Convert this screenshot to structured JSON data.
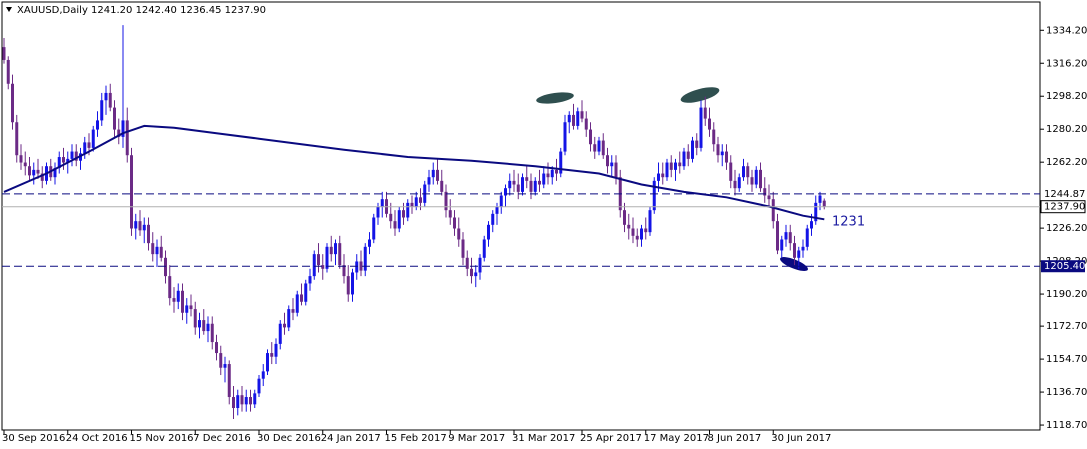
{
  "chart_data": {
    "type": "candlestick",
    "title": "XAUUSD,Daily  1241.20 1242.40 1236.45 1237.90",
    "ylim": [
      1116,
      1348
    ],
    "yticks": [
      {
        "value": 1334.2,
        "label": "1334.20"
      },
      {
        "value": 1316.2,
        "label": "1316.20"
      },
      {
        "value": 1298.2,
        "label": "1298.20"
      },
      {
        "value": 1280.2,
        "label": "1280.20"
      },
      {
        "value": 1262.2,
        "label": "1262.20"
      },
      {
        "value": 1226.2,
        "label": "1226.20"
      },
      {
        "value": 1208.2,
        "label": "1208.20"
      },
      {
        "value": 1190.2,
        "label": "1190.20"
      },
      {
        "value": 1172.7,
        "label": "1172.70"
      },
      {
        "value": 1154.7,
        "label": "1154.70"
      },
      {
        "value": 1136.7,
        "label": "1136.70"
      },
      {
        "value": 1118.7,
        "label": "1118.70"
      }
    ],
    "up_color": "#1414e6",
    "down_color": "#6b2a86",
    "categories": [
      "30 Sep 2016",
      null,
      null,
      null,
      null,
      null,
      null,
      null,
      null,
      null,
      null,
      null,
      null,
      null,
      null,
      "24 Oct 2016",
      null,
      null,
      null,
      null,
      null,
      null,
      null,
      null,
      null,
      null,
      null,
      null,
      null,
      null,
      "15 Nov 2016",
      null,
      null,
      null,
      null,
      null,
      null,
      null,
      null,
      null,
      null,
      null,
      null,
      null,
      null,
      "7 Dec 2016",
      null,
      null,
      null,
      null,
      null,
      null,
      null,
      null,
      null,
      null,
      null,
      null,
      null,
      null,
      "30 Dec 2016",
      null,
      null,
      null,
      null,
      null,
      null,
      null,
      null,
      null,
      null,
      null,
      null,
      null,
      null,
      "24 Jan 2017",
      null,
      null,
      null,
      null,
      null,
      null,
      null,
      null,
      null,
      null,
      null,
      null,
      null,
      null,
      "15 Feb 2017",
      null,
      null,
      null,
      null,
      null,
      null,
      null,
      null,
      null,
      null,
      null,
      null,
      null,
      null,
      "9 Mar 2017",
      null,
      null,
      null,
      null,
      null,
      null,
      null,
      null,
      null,
      null,
      null,
      null,
      null,
      null,
      "31 Mar 2017",
      null,
      null,
      null,
      null,
      null,
      null,
      null,
      null,
      null,
      null,
      null,
      null,
      null,
      null,
      null,
      "25 Apr 2017",
      null,
      null,
      null,
      null,
      null,
      null,
      null,
      null,
      null,
      null,
      null,
      null,
      null,
      null,
      "17 May 2017",
      null,
      null,
      null,
      null,
      null,
      null,
      null,
      null,
      null,
      null,
      null,
      null,
      null,
      null,
      "8 Jun 2017",
      null,
      null,
      null,
      null,
      null,
      null,
      null,
      null,
      null,
      null,
      null,
      null,
      null,
      null,
      "30 Jun 2017",
      null,
      null,
      null,
      null,
      null,
      null,
      null,
      null,
      null,
      null,
      null,
      null
    ],
    "candles": [
      [
        1325,
        1330,
        1316,
        1318
      ],
      [
        1318,
        1320,
        1302,
        1305
      ],
      [
        1305,
        1310,
        1280,
        1284
      ],
      [
        1284,
        1288,
        1262,
        1266
      ],
      [
        1266,
        1272,
        1258,
        1262
      ],
      [
        1262,
        1268,
        1255,
        1260
      ],
      [
        1260,
        1265,
        1252,
        1255
      ],
      [
        1255,
        1262,
        1250,
        1258
      ],
      [
        1258,
        1264,
        1253,
        1256
      ],
      [
        1256,
        1260,
        1248,
        1252
      ],
      [
        1252,
        1262,
        1250,
        1260
      ],
      [
        1260,
        1264,
        1252,
        1254
      ],
      [
        1254,
        1262,
        1250,
        1259
      ],
      [
        1259,
        1268,
        1256,
        1265
      ],
      [
        1265,
        1270,
        1258,
        1262
      ],
      [
        1262,
        1268,
        1256,
        1264
      ],
      [
        1264,
        1272,
        1260,
        1268
      ],
      [
        1268,
        1272,
        1260,
        1263
      ],
      [
        1263,
        1270,
        1258,
        1267
      ],
      [
        1267,
        1276,
        1264,
        1273
      ],
      [
        1273,
        1278,
        1266,
        1270
      ],
      [
        1270,
        1282,
        1268,
        1280
      ],
      [
        1280,
        1290,
        1276,
        1285
      ],
      [
        1285,
        1300,
        1282,
        1296
      ],
      [
        1296,
        1304,
        1288,
        1300
      ],
      [
        1300,
        1305,
        1290,
        1292
      ],
      [
        1292,
        1296,
        1276,
        1280
      ],
      [
        1280,
        1286,
        1272,
        1276
      ],
      [
        1276,
        1337,
        1270,
        1285
      ],
      [
        1285,
        1292,
        1262,
        1266
      ],
      [
        1266,
        1270,
        1222,
        1226
      ],
      [
        1226,
        1234,
        1220,
        1230
      ],
      [
        1230,
        1236,
        1222,
        1225
      ],
      [
        1225,
        1232,
        1218,
        1228
      ],
      [
        1228,
        1232,
        1214,
        1218
      ],
      [
        1218,
        1224,
        1208,
        1212
      ],
      [
        1212,
        1220,
        1205,
        1216
      ],
      [
        1216,
        1222,
        1208,
        1210
      ],
      [
        1210,
        1214,
        1196,
        1200
      ],
      [
        1200,
        1206,
        1184,
        1188
      ],
      [
        1188,
        1194,
        1180,
        1186
      ],
      [
        1186,
        1196,
        1182,
        1192
      ],
      [
        1192,
        1196,
        1176,
        1180
      ],
      [
        1180,
        1188,
        1174,
        1184
      ],
      [
        1184,
        1190,
        1178,
        1182
      ],
      [
        1182,
        1186,
        1168,
        1172
      ],
      [
        1172,
        1180,
        1166,
        1176
      ],
      [
        1176,
        1182,
        1168,
        1170
      ],
      [
        1170,
        1178,
        1164,
        1174
      ],
      [
        1174,
        1178,
        1160,
        1164
      ],
      [
        1164,
        1168,
        1154,
        1158
      ],
      [
        1158,
        1162,
        1146,
        1150
      ],
      [
        1150,
        1156,
        1142,
        1152
      ],
      [
        1152,
        1154,
        1130,
        1134
      ],
      [
        1134,
        1140,
        1122,
        1128
      ],
      [
        1128,
        1138,
        1124,
        1135
      ],
      [
        1135,
        1140,
        1126,
        1130
      ],
      [
        1130,
        1138,
        1126,
        1134
      ],
      [
        1134,
        1138,
        1126,
        1130
      ],
      [
        1130,
        1138,
        1128,
        1136
      ],
      [
        1136,
        1146,
        1134,
        1144
      ],
      [
        1144,
        1152,
        1140,
        1148
      ],
      [
        1148,
        1160,
        1146,
        1158
      ],
      [
        1158,
        1164,
        1152,
        1156
      ],
      [
        1156,
        1166,
        1152,
        1163
      ],
      [
        1163,
        1176,
        1160,
        1174
      ],
      [
        1174,
        1180,
        1168,
        1172
      ],
      [
        1172,
        1184,
        1170,
        1182
      ],
      [
        1182,
        1188,
        1176,
        1180
      ],
      [
        1180,
        1192,
        1178,
        1190
      ],
      [
        1190,
        1196,
        1184,
        1186
      ],
      [
        1186,
        1198,
        1184,
        1196
      ],
      [
        1196,
        1204,
        1192,
        1200
      ],
      [
        1200,
        1214,
        1198,
        1212
      ],
      [
        1212,
        1218,
        1202,
        1206
      ],
      [
        1206,
        1212,
        1198,
        1204
      ],
      [
        1204,
        1218,
        1202,
        1216
      ],
      [
        1216,
        1222,
        1208,
        1212
      ],
      [
        1212,
        1220,
        1206,
        1218
      ],
      [
        1218,
        1222,
        1204,
        1206
      ],
      [
        1206,
        1212,
        1196,
        1200
      ],
      [
        1200,
        1206,
        1186,
        1190
      ],
      [
        1190,
        1204,
        1186,
        1202
      ],
      [
        1202,
        1212,
        1198,
        1208
      ],
      [
        1208,
        1214,
        1200,
        1203
      ],
      [
        1203,
        1218,
        1200,
        1216
      ],
      [
        1216,
        1224,
        1212,
        1220
      ],
      [
        1220,
        1234,
        1218,
        1232
      ],
      [
        1232,
        1240,
        1228,
        1238
      ],
      [
        1238,
        1246,
        1232,
        1242
      ],
      [
        1242,
        1246,
        1232,
        1234
      ],
      [
        1234,
        1240,
        1226,
        1230
      ],
      [
        1230,
        1236,
        1222,
        1226
      ],
      [
        1226,
        1238,
        1224,
        1236
      ],
      [
        1236,
        1240,
        1228,
        1232
      ],
      [
        1232,
        1242,
        1230,
        1240
      ],
      [
        1240,
        1244,
        1234,
        1238
      ],
      [
        1238,
        1246,
        1236,
        1243
      ],
      [
        1243,
        1248,
        1236,
        1240
      ],
      [
        1240,
        1252,
        1238,
        1250
      ],
      [
        1250,
        1258,
        1246,
        1254
      ],
      [
        1254,
        1262,
        1250,
        1258
      ],
      [
        1258,
        1264,
        1250,
        1252
      ],
      [
        1252,
        1258,
        1244,
        1246
      ],
      [
        1246,
        1250,
        1232,
        1236
      ],
      [
        1236,
        1242,
        1228,
        1232
      ],
      [
        1232,
        1236,
        1222,
        1226
      ],
      [
        1226,
        1232,
        1216,
        1220
      ],
      [
        1220,
        1224,
        1206,
        1210
      ],
      [
        1210,
        1214,
        1200,
        1204
      ],
      [
        1204,
        1210,
        1196,
        1200
      ],
      [
        1200,
        1206,
        1194,
        1202
      ],
      [
        1202,
        1212,
        1198,
        1210
      ],
      [
        1210,
        1222,
        1208,
        1220
      ],
      [
        1220,
        1230,
        1216,
        1228
      ],
      [
        1228,
        1236,
        1224,
        1234
      ],
      [
        1234,
        1240,
        1228,
        1238
      ],
      [
        1238,
        1246,
        1234,
        1244
      ],
      [
        1244,
        1250,
        1238,
        1248
      ],
      [
        1248,
        1256,
        1244,
        1252
      ],
      [
        1252,
        1258,
        1246,
        1250
      ],
      [
        1250,
        1256,
        1242,
        1246
      ],
      [
        1246,
        1256,
        1244,
        1254
      ],
      [
        1254,
        1260,
        1248,
        1252
      ],
      [
        1252,
        1256,
        1242,
        1246
      ],
      [
        1246,
        1254,
        1244,
        1252
      ],
      [
        1252,
        1258,
        1246,
        1250
      ],
      [
        1250,
        1260,
        1248,
        1256
      ],
      [
        1256,
        1262,
        1250,
        1254
      ],
      [
        1254,
        1260,
        1250,
        1258
      ],
      [
        1258,
        1264,
        1252,
        1256
      ],
      [
        1256,
        1270,
        1254,
        1268
      ],
      [
        1268,
        1288,
        1266,
        1284
      ],
      [
        1284,
        1290,
        1278,
        1288
      ],
      [
        1288,
        1294,
        1280,
        1282
      ],
      [
        1282,
        1292,
        1280,
        1290
      ],
      [
        1290,
        1296,
        1284,
        1286
      ],
      [
        1286,
        1290,
        1276,
        1280
      ],
      [
        1280,
        1284,
        1268,
        1272
      ],
      [
        1272,
        1276,
        1264,
        1268
      ],
      [
        1268,
        1276,
        1266,
        1274
      ],
      [
        1274,
        1278,
        1264,
        1266
      ],
      [
        1266,
        1270,
        1256,
        1260
      ],
      [
        1260,
        1266,
        1254,
        1262
      ],
      [
        1262,
        1266,
        1250,
        1254
      ],
      [
        1254,
        1258,
        1232,
        1236
      ],
      [
        1236,
        1240,
        1224,
        1228
      ],
      [
        1228,
        1234,
        1220,
        1226
      ],
      [
        1226,
        1232,
        1218,
        1222
      ],
      [
        1222,
        1226,
        1216,
        1220
      ],
      [
        1220,
        1228,
        1216,
        1226
      ],
      [
        1226,
        1232,
        1220,
        1224
      ],
      [
        1224,
        1238,
        1222,
        1236
      ],
      [
        1236,
        1254,
        1234,
        1252
      ],
      [
        1252,
        1262,
        1246,
        1256
      ],
      [
        1256,
        1262,
        1250,
        1254
      ],
      [
        1254,
        1264,
        1252,
        1262
      ],
      [
        1262,
        1266,
        1254,
        1258
      ],
      [
        1258,
        1264,
        1252,
        1262
      ],
      [
        1262,
        1268,
        1256,
        1260
      ],
      [
        1260,
        1270,
        1258,
        1268
      ],
      [
        1268,
        1272,
        1260,
        1264
      ],
      [
        1264,
        1276,
        1262,
        1274
      ],
      [
        1274,
        1278,
        1266,
        1270
      ],
      [
        1270,
        1296,
        1268,
        1292
      ],
      [
        1292,
        1298,
        1282,
        1286
      ],
      [
        1286,
        1292,
        1276,
        1280
      ],
      [
        1280,
        1284,
        1268,
        1272
      ],
      [
        1272,
        1276,
        1262,
        1266
      ],
      [
        1266,
        1272,
        1260,
        1268
      ],
      [
        1268,
        1272,
        1258,
        1262
      ],
      [
        1262,
        1266,
        1248,
        1252
      ],
      [
        1252,
        1258,
        1244,
        1248
      ],
      [
        1248,
        1256,
        1246,
        1254
      ],
      [
        1254,
        1264,
        1252,
        1260
      ],
      [
        1260,
        1262,
        1250,
        1254
      ],
      [
        1254,
        1258,
        1246,
        1250
      ],
      [
        1250,
        1260,
        1248,
        1258
      ],
      [
        1258,
        1262,
        1246,
        1248
      ],
      [
        1248,
        1254,
        1240,
        1244
      ],
      [
        1244,
        1250,
        1238,
        1242
      ],
      [
        1242,
        1246,
        1226,
        1230
      ],
      [
        1230,
        1234,
        1212,
        1214
      ],
      [
        1214,
        1222,
        1210,
        1220
      ],
      [
        1220,
        1228,
        1216,
        1224
      ],
      [
        1224,
        1228,
        1214,
        1218
      ],
      [
        1218,
        1222,
        1206,
        1210
      ],
      [
        1210,
        1216,
        1204,
        1214
      ],
      [
        1214,
        1220,
        1210,
        1216
      ],
      [
        1216,
        1228,
        1214,
        1226
      ],
      [
        1226,
        1234,
        1222,
        1230
      ],
      [
        1230,
        1244,
        1228,
        1240
      ],
      [
        1240,
        1246,
        1236,
        1244
      ],
      [
        1241.2,
        1242.4,
        1236.45,
        1237.9
      ]
    ],
    "ma": {
      "color": "#0a0a80",
      "x": [
        0,
        10,
        20,
        28,
        33,
        40,
        50,
        60,
        70,
        80,
        95,
        110,
        125,
        140,
        150,
        160,
        170,
        180,
        188,
        193
      ],
      "values": [
        1246,
        1256,
        1268,
        1278,
        1282,
        1281,
        1278,
        1275,
        1272,
        1269,
        1265,
        1263,
        1260,
        1256,
        1250,
        1246,
        1243,
        1238,
        1233,
        1231
      ]
    },
    "levels": [
      {
        "value": 1244.87,
        "label": "1244.87",
        "style": "dashed",
        "color": "#0a0a80"
      },
      {
        "value": 1237.9,
        "label": "1237.90",
        "style": "solid",
        "color": "#b0b0b0"
      },
      {
        "value": 1205.4,
        "label": "1205.40",
        "style": "dashed",
        "color": "#0a0a80"
      }
    ],
    "annotation": "1231"
  }
}
